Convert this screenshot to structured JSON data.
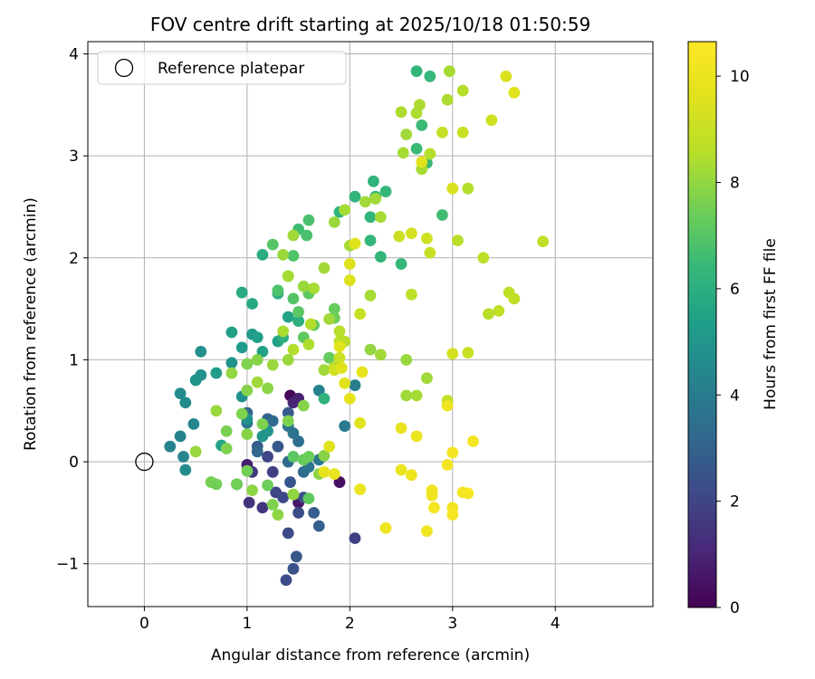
{
  "chart_data": {
    "type": "scatter",
    "title": "FOV centre drift starting at 2025/10/18 01:50:59",
    "xlabel": "Angular distance from reference (arcmin)",
    "ylabel": "Rotation from reference (arcmin)",
    "xlim": [
      -0.55,
      4.95
    ],
    "ylim": [
      -1.42,
      4.12
    ],
    "xticks": [
      0,
      1,
      2,
      3,
      4
    ],
    "yticks": [
      -1,
      0,
      1,
      2,
      3,
      4
    ],
    "xtick_labels": [
      "0",
      "1",
      "2",
      "3",
      "4"
    ],
    "ytick_labels": [
      "−1",
      "0",
      "1",
      "2",
      "3",
      "4"
    ],
    "grid": true,
    "legend": {
      "position": "upper-left",
      "label": "Reference platepar",
      "marker": "open-circle"
    },
    "reference_point": {
      "x": 0,
      "y": 0
    },
    "colorbar": {
      "label": "Hours from first FF file",
      "colormap": "viridis",
      "range": [
        0,
        10.65
      ],
      "ticks": [
        0,
        2,
        4,
        6,
        8,
        10
      ],
      "tick_labels": [
        "0",
        "2",
        "4",
        "6",
        "8",
        "10"
      ]
    },
    "points": [
      [
        1.42,
        0.65,
        0.2
      ],
      [
        1.5,
        -0.4,
        0.6
      ],
      [
        1.9,
        -0.2,
        0.4
      ],
      [
        1.0,
        -0.03,
        0.8
      ],
      [
        1.5,
        0.62,
        0.9
      ],
      [
        1.45,
        0.58,
        1.0
      ],
      [
        2.05,
        -0.75,
        1.8
      ],
      [
        1.02,
        -0.4,
        1.4
      ],
      [
        1.15,
        -0.45,
        1.5
      ],
      [
        0.9,
        -0.22,
        1.2
      ],
      [
        1.05,
        -0.1,
        1.6
      ],
      [
        1.25,
        -0.1,
        1.8
      ],
      [
        1.2,
        0.05,
        2.0
      ],
      [
        1.28,
        -0.3,
        2.0
      ],
      [
        1.35,
        -0.35,
        2.1
      ],
      [
        1.4,
        -0.7,
        2.2
      ],
      [
        1.38,
        -1.16,
        2.2
      ],
      [
        1.45,
        -1.05,
        2.4
      ],
      [
        1.48,
        -0.93,
        2.6
      ],
      [
        1.5,
        -0.5,
        2.2
      ],
      [
        1.55,
        -0.35,
        2.4
      ],
      [
        1.42,
        -0.2,
        2.5
      ],
      [
        1.65,
        -0.5,
        2.8
      ],
      [
        1.7,
        -0.63,
        2.9
      ],
      [
        1.3,
        0.15,
        2.6
      ],
      [
        1.4,
        0.48,
        2.7
      ],
      [
        1.1,
        0.15,
        2.8
      ],
      [
        1.2,
        0.42,
        3.0
      ],
      [
        1.0,
        0.48,
        3.1
      ],
      [
        1.1,
        0.1,
        3.2
      ],
      [
        1.25,
        0.4,
        3.3
      ],
      [
        1.4,
        0.0,
        3.3
      ],
      [
        1.55,
        -0.1,
        3.4
      ],
      [
        1.5,
        0.2,
        3.5
      ],
      [
        1.6,
        -0.05,
        3.6
      ],
      [
        1.7,
        0.02,
        3.8
      ],
      [
        1.4,
        0.35,
        3.6
      ],
      [
        1.45,
        0.28,
        3.7
      ],
      [
        1.95,
        0.35,
        4.0
      ],
      [
        2.05,
        0.75,
        4.1
      ],
      [
        1.7,
        0.7,
        4.2
      ],
      [
        1.0,
        0.38,
        3.8
      ],
      [
        0.25,
        0.15,
        4.3
      ],
      [
        0.35,
        0.25,
        4.3
      ],
      [
        0.38,
        0.05,
        4.4
      ],
      [
        0.48,
        0.37,
        4.4
      ],
      [
        0.4,
        -0.08,
        4.6
      ],
      [
        0.35,
        0.67,
        4.6
      ],
      [
        0.4,
        0.58,
        4.6
      ],
      [
        0.55,
        0.85,
        4.8
      ],
      [
        0.5,
        0.8,
        4.9
      ],
      [
        0.55,
        1.08,
        4.8
      ],
      [
        0.85,
        0.97,
        4.9
      ],
      [
        0.95,
        0.64,
        4.8
      ],
      [
        1.0,
        0.42,
        4.9
      ],
      [
        1.15,
        0.25,
        5.0
      ],
      [
        1.2,
        0.3,
        5.0
      ],
      [
        0.95,
        1.12,
        5.2
      ],
      [
        1.05,
        1.25,
        5.2
      ],
      [
        1.1,
        1.22,
        5.4
      ],
      [
        0.85,
        1.27,
        5.4
      ],
      [
        0.7,
        0.87,
        5.2
      ],
      [
        1.15,
        1.08,
        5.5
      ],
      [
        1.3,
        1.18,
        5.5
      ],
      [
        1.4,
        1.42,
        5.5
      ],
      [
        0.75,
        0.16,
        5.5
      ],
      [
        0.95,
        1.66,
        5.8
      ],
      [
        1.05,
        1.55,
        5.8
      ],
      [
        1.15,
        2.03,
        5.9
      ],
      [
        1.3,
        1.65,
        6.0
      ],
      [
        1.35,
        1.22,
        6.0
      ],
      [
        1.5,
        1.38,
        6.0
      ],
      [
        1.75,
        0.62,
        6.2
      ],
      [
        1.9,
        2.45,
        6.2
      ],
      [
        2.05,
        2.6,
        6.2
      ],
      [
        2.2,
        2.4,
        6.3
      ],
      [
        2.2,
        2.17,
        6.3
      ],
      [
        2.3,
        2.01,
        6.3
      ],
      [
        2.23,
        2.75,
        6.2
      ],
      [
        2.25,
        2.6,
        6.3
      ],
      [
        2.35,
        2.65,
        6.4
      ],
      [
        2.5,
        1.94,
        6.4
      ],
      [
        2.65,
        3.83,
        6.3
      ],
      [
        2.78,
        3.78,
        6.4
      ],
      [
        2.7,
        3.3,
        6.5
      ],
      [
        2.65,
        3.07,
        6.5
      ],
      [
        2.75,
        2.93,
        6.5
      ],
      [
        2.9,
        2.42,
        6.6
      ],
      [
        1.5,
        2.28,
        6.6
      ],
      [
        1.58,
        2.22,
        6.8
      ],
      [
        1.6,
        2.37,
        6.8
      ],
      [
        1.45,
        2.02,
        6.9
      ],
      [
        1.25,
        2.13,
        7.0
      ],
      [
        1.3,
        1.68,
        6.9
      ],
      [
        1.4,
        1.82,
        7.0
      ],
      [
        1.45,
        1.6,
        7.0
      ],
      [
        1.5,
        1.47,
        7.1
      ],
      [
        1.55,
        1.22,
        7.2
      ],
      [
        1.6,
        1.65,
        7.2
      ],
      [
        1.65,
        1.34,
        7.2
      ],
      [
        1.8,
        1.02,
        7.3
      ],
      [
        1.85,
        1.5,
        7.3
      ],
      [
        1.85,
        1.41,
        7.4
      ],
      [
        1.45,
        0.05,
        7.1
      ],
      [
        1.6,
        -0.36,
        7.2
      ],
      [
        1.45,
        -0.32,
        7.3
      ],
      [
        1.55,
        0.02,
        7.3
      ],
      [
        1.6,
        0.05,
        7.4
      ],
      [
        1.2,
        -0.23,
        7.4
      ],
      [
        1.0,
        -0.09,
        7.5
      ],
      [
        0.9,
        -0.22,
        7.5
      ],
      [
        0.65,
        -0.2,
        7.6
      ],
      [
        0.7,
        -0.22,
        7.5
      ],
      [
        0.8,
        0.3,
        7.6
      ],
      [
        0.8,
        0.13,
        7.7
      ],
      [
        1.15,
        0.37,
        7.7
      ],
      [
        1.0,
        0.27,
        7.8
      ],
      [
        0.95,
        0.47,
        7.7
      ],
      [
        1.0,
        0.7,
        7.8
      ],
      [
        1.0,
        0.96,
        7.7
      ],
      [
        1.1,
        1.0,
        7.8
      ],
      [
        1.2,
        0.72,
        7.9
      ],
      [
        1.4,
        0.4,
        7.7
      ],
      [
        1.55,
        0.55,
        7.8
      ],
      [
        1.75,
        0.06,
        7.8
      ],
      [
        1.7,
        -0.12,
        7.9
      ],
      [
        1.05,
        -0.28,
        7.9
      ],
      [
        1.25,
        -0.42,
        7.7
      ],
      [
        1.3,
        -0.52,
        7.9
      ],
      [
        1.45,
        -0.32,
        8.0
      ],
      [
        0.5,
        0.1,
        8.1
      ],
      [
        0.7,
        0.5,
        8.1
      ],
      [
        0.85,
        0.87,
        8.0
      ],
      [
        1.1,
        0.78,
        8.2
      ],
      [
        1.25,
        0.95,
        8.1
      ],
      [
        1.4,
        1.0,
        8.1
      ],
      [
        1.75,
        0.9,
        8.2
      ],
      [
        1.8,
        1.4,
        8.2
      ],
      [
        2.2,
        1.1,
        8.0
      ],
      [
        2.3,
        1.05,
        8.2
      ],
      [
        2.55,
        1.0,
        8.1
      ],
      [
        2.55,
        0.65,
        8.2
      ],
      [
        2.65,
        0.65,
        8.3
      ],
      [
        2.75,
        0.82,
        8.2
      ],
      [
        1.35,
        2.03,
        8.1
      ],
      [
        1.45,
        2.22,
        8.2
      ],
      [
        1.55,
        1.72,
        8.1
      ],
      [
        1.65,
        1.7,
        8.3
      ],
      [
        1.75,
        1.9,
        8.2
      ],
      [
        1.85,
        2.35,
        8.1
      ],
      [
        1.95,
        2.47,
        8.3
      ],
      [
        2.0,
        2.12,
        8.3
      ],
      [
        2.15,
        2.55,
        8.2
      ],
      [
        2.25,
        2.58,
        8.2
      ],
      [
        2.2,
        1.63,
        8.3
      ],
      [
        2.3,
        2.4,
        8.3
      ],
      [
        2.55,
        3.21,
        8.2
      ],
      [
        2.5,
        3.43,
        8.4
      ],
      [
        2.52,
        3.03,
        8.3
      ],
      [
        2.65,
        3.42,
        8.4
      ],
      [
        2.68,
        3.5,
        8.4
      ],
      [
        2.7,
        2.87,
        8.3
      ],
      [
        2.78,
        3.02,
        8.5
      ],
      [
        2.95,
        3.55,
        8.4
      ],
      [
        2.97,
        3.83,
        8.3
      ],
      [
        3.1,
        3.64,
        8.5
      ],
      [
        3.15,
        2.68,
        8.5
      ],
      [
        1.35,
        1.28,
        8.4
      ],
      [
        1.4,
        1.82,
        8.3
      ],
      [
        1.45,
        1.1,
        8.5
      ],
      [
        1.62,
        1.35,
        8.5
      ],
      [
        1.6,
        1.15,
        8.4
      ],
      [
        1.9,
        1.28,
        8.6
      ],
      [
        1.9,
        1.18,
        8.7
      ],
      [
        1.95,
        1.18,
        8.6
      ],
      [
        1.85,
        0.93,
        8.5
      ],
      [
        2.6,
        1.64,
        8.7
      ],
      [
        3.05,
        2.17,
        8.6
      ],
      [
        3.3,
        2.0,
        8.7
      ],
      [
        3.35,
        1.45,
        8.6
      ],
      [
        3.45,
        1.48,
        8.8
      ],
      [
        3.55,
        1.66,
        8.7
      ],
      [
        3.6,
        1.6,
        8.8
      ],
      [
        3.88,
        2.16,
        8.8
      ],
      [
        3.15,
        1.07,
        9.0
      ],
      [
        2.95,
        0.6,
        8.9
      ],
      [
        1.85,
        0.9,
        9.2
      ],
      [
        1.9,
        1.02,
        9.1
      ],
      [
        2.1,
        1.45,
        9.0
      ],
      [
        2.48,
        2.21,
        9.1
      ],
      [
        2.6,
        2.24,
        9.3
      ],
      [
        2.78,
        2.05,
        9.0
      ],
      [
        2.75,
        2.19,
        9.2
      ],
      [
        3.0,
        1.06,
        9.3
      ],
      [
        3.1,
        3.23,
        9.0
      ],
      [
        3.38,
        3.35,
        9.2
      ],
      [
        3.52,
        3.78,
        9.4
      ],
      [
        3.6,
        3.62,
        9.6
      ],
      [
        3.0,
        2.68,
        9.4
      ],
      [
        2.9,
        3.23,
        8.9
      ],
      [
        2.7,
        2.94,
        9.6
      ],
      [
        2.0,
        1.78,
        9.5
      ],
      [
        2.05,
        2.14,
        9.6
      ],
      [
        2.0,
        1.94,
        9.5
      ],
      [
        1.92,
        0.92,
        9.6
      ],
      [
        1.95,
        0.77,
        9.7
      ],
      [
        2.0,
        0.62,
        9.8
      ],
      [
        2.1,
        0.38,
        9.7
      ],
      [
        2.12,
        0.88,
        9.8
      ],
      [
        1.8,
        0.15,
        9.6
      ],
      [
        1.9,
        1.13,
        9.7
      ],
      [
        1.75,
        -0.1,
        9.8
      ],
      [
        1.85,
        -0.12,
        10.0
      ],
      [
        2.1,
        -0.27,
        10.0
      ],
      [
        2.35,
        -0.65,
        10.1
      ],
      [
        2.5,
        0.33,
        9.9
      ],
      [
        2.5,
        -0.08,
        10.0
      ],
      [
        2.6,
        -0.13,
        10.1
      ],
      [
        2.65,
        0.25,
        10.0
      ],
      [
        2.75,
        -0.68,
        10.2
      ],
      [
        2.8,
        -0.33,
        10.1
      ],
      [
        2.8,
        -0.28,
        10.2
      ],
      [
        2.82,
        -0.45,
        10.3
      ],
      [
        2.95,
        0.55,
        10.1
      ],
      [
        2.95,
        -0.03,
        10.2
      ],
      [
        3.0,
        0.09,
        10.3
      ],
      [
        3.0,
        -0.45,
        10.2
      ],
      [
        3.0,
        -0.52,
        10.4
      ],
      [
        3.1,
        -0.3,
        10.3
      ],
      [
        3.15,
        -0.31,
        10.4
      ],
      [
        3.2,
        0.2,
        10.3
      ]
    ]
  }
}
